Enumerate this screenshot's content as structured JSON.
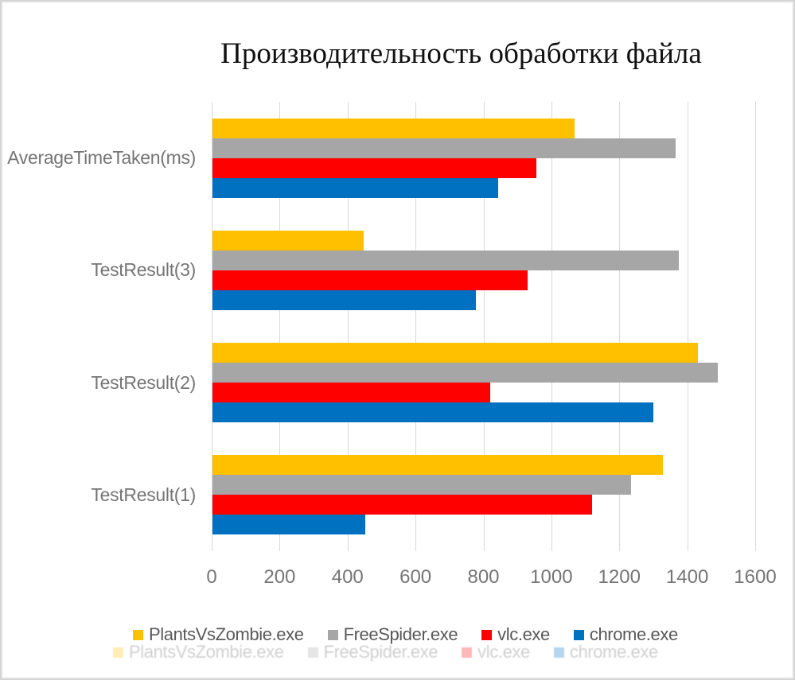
{
  "chart_data": {
    "type": "bar",
    "orientation": "horizontal",
    "title": "Производительность обработки файла",
    "categories": [
      "AverageTimeTaken(ms)",
      "TestResult(3)",
      "TestResult(2)",
      "TestResult(1)"
    ],
    "series": [
      {
        "name": "PlantsVsZombie.exe",
        "color": "#FFC000",
        "values": [
          1067,
          445,
          1430,
          1327
        ]
      },
      {
        "name": "FreeSpider.exe",
        "color": "#A6A6A6",
        "values": [
          1364,
          1372,
          1487,
          1232
        ]
      },
      {
        "name": "vlc.exe",
        "color": "#FF0000",
        "values": [
          954,
          928,
          817,
          1117
        ]
      },
      {
        "name": "chrome.exe",
        "color": "#0070C0",
        "values": [
          841,
          775,
          1298,
          449
        ]
      }
    ],
    "xlim": [
      0,
      1600
    ],
    "xticks": [
      0,
      200,
      400,
      600,
      800,
      1000,
      1200,
      1400,
      1600
    ],
    "grid": "vertical-only",
    "gridline_color": "#d9d9d9",
    "legend_position": "bottom",
    "legend_ghost_artifact": true
  }
}
